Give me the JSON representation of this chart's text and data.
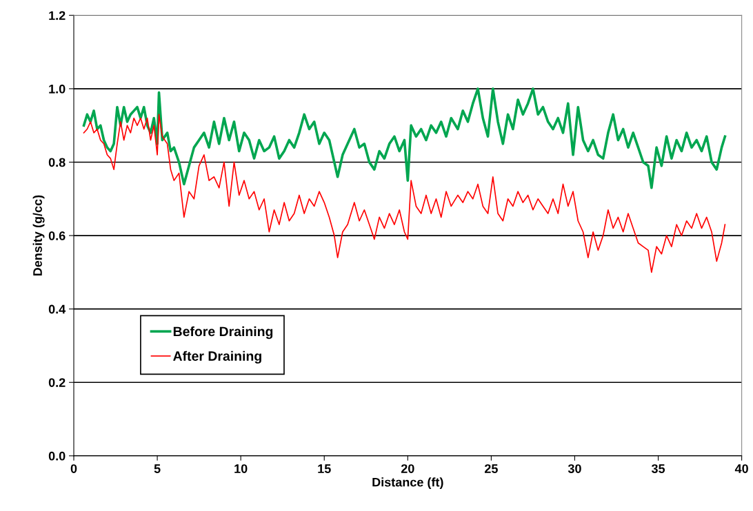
{
  "chart_data": {
    "type": "line",
    "xlabel": "Distance (ft)",
    "ylabel": "Density (g/cc)",
    "xlim": [
      0,
      40
    ],
    "xticks": [
      0,
      5,
      10,
      15,
      20,
      25,
      30,
      35,
      40
    ],
    "ylim": [
      0,
      1.2
    ],
    "yticks": [
      {
        "value": 0,
        "label": "0.0"
      },
      {
        "value": 0.2,
        "label": "0.2"
      },
      {
        "value": 0.4,
        "label": "0.4"
      },
      {
        "value": 0.6,
        "label": "0.6"
      },
      {
        "value": 0.8,
        "label": "0.8"
      },
      {
        "value": 1.0,
        "label": "1.0"
      },
      {
        "value": 1.2,
        "label": "1.2"
      }
    ],
    "grid": "y",
    "legend": "bottom left",
    "marker": "none",
    "line_style": "solid",
    "x": [
      0.6,
      0.8,
      1.0,
      1.2,
      1.4,
      1.6,
      1.8,
      2.0,
      2.2,
      2.4,
      2.6,
      2.8,
      3.0,
      3.2,
      3.4,
      3.6,
      3.8,
      4.0,
      4.2,
      4.4,
      4.6,
      4.8,
      5.0,
      5.1,
      5.3,
      5.6,
      5.8,
      6.0,
      6.3,
      6.6,
      6.9,
      7.2,
      7.5,
      7.8,
      8.1,
      8.4,
      8.7,
      9.0,
      9.3,
      9.6,
      9.9,
      10.2,
      10.5,
      10.8,
      11.1,
      11.4,
      11.7,
      12.0,
      12.3,
      12.6,
      12.9,
      13.2,
      13.5,
      13.8,
      14.1,
      14.4,
      14.7,
      15.0,
      15.3,
      15.6,
      15.8,
      16.1,
      16.4,
      16.8,
      17.1,
      17.4,
      17.7,
      18.0,
      18.3,
      18.6,
      18.9,
      19.2,
      19.5,
      19.8,
      20.0,
      20.2,
      20.5,
      20.8,
      21.1,
      21.4,
      21.7,
      22.0,
      22.3,
      22.6,
      23.0,
      23.3,
      23.6,
      23.9,
      24.2,
      24.5,
      24.8,
      25.1,
      25.4,
      25.7,
      26.0,
      26.3,
      26.6,
      26.9,
      27.2,
      27.5,
      27.8,
      28.1,
      28.4,
      28.7,
      29.0,
      29.3,
      29.6,
      29.9,
      30.2,
      30.5,
      30.8,
      31.1,
      31.4,
      31.7,
      32.0,
      32.3,
      32.6,
      32.9,
      33.2,
      33.5,
      33.8,
      34.1,
      34.4,
      34.6,
      34.9,
      35.2,
      35.5,
      35.8,
      36.1,
      36.4,
      36.7,
      37.0,
      37.3,
      37.6,
      37.9,
      38.2,
      38.5,
      38.8,
      39.0
    ],
    "series": [
      {
        "name": "Before Draining",
        "color": "#00a650",
        "values": [
          0.9,
          0.93,
          0.91,
          0.94,
          0.89,
          0.9,
          0.86,
          0.84,
          0.83,
          0.85,
          0.95,
          0.9,
          0.95,
          0.91,
          0.93,
          0.94,
          0.95,
          0.92,
          0.95,
          0.9,
          0.88,
          0.92,
          0.85,
          0.99,
          0.86,
          0.88,
          0.83,
          0.84,
          0.8,
          0.74,
          0.79,
          0.84,
          0.86,
          0.88,
          0.84,
          0.91,
          0.85,
          0.92,
          0.86,
          0.91,
          0.83,
          0.88,
          0.86,
          0.81,
          0.86,
          0.83,
          0.84,
          0.87,
          0.81,
          0.83,
          0.86,
          0.84,
          0.88,
          0.93,
          0.89,
          0.91,
          0.85,
          0.88,
          0.86,
          0.8,
          0.76,
          0.82,
          0.85,
          0.89,
          0.84,
          0.85,
          0.8,
          0.78,
          0.83,
          0.81,
          0.85,
          0.87,
          0.83,
          0.86,
          0.75,
          0.9,
          0.87,
          0.89,
          0.86,
          0.9,
          0.88,
          0.91,
          0.87,
          0.92,
          0.89,
          0.94,
          0.91,
          0.96,
          1.0,
          0.92,
          0.87,
          1.0,
          0.91,
          0.85,
          0.93,
          0.89,
          0.97,
          0.93,
          0.96,
          1.0,
          0.93,
          0.95,
          0.91,
          0.89,
          0.92,
          0.88,
          0.96,
          0.82,
          0.95,
          0.86,
          0.83,
          0.86,
          0.82,
          0.81,
          0.88,
          0.93,
          0.86,
          0.89,
          0.84,
          0.88,
          0.84,
          0.8,
          0.79,
          0.73,
          0.84,
          0.79,
          0.87,
          0.81,
          0.86,
          0.83,
          0.88,
          0.84,
          0.86,
          0.83,
          0.87,
          0.8,
          0.78,
          0.84,
          0.87
        ]
      },
      {
        "name": "After Draining",
        "color": "#ff0000",
        "values": [
          0.88,
          0.89,
          0.91,
          0.88,
          0.89,
          0.86,
          0.85,
          0.82,
          0.81,
          0.78,
          0.85,
          0.91,
          0.86,
          0.9,
          0.88,
          0.92,
          0.9,
          0.92,
          0.89,
          0.92,
          0.86,
          0.9,
          0.82,
          0.93,
          0.87,
          0.85,
          0.78,
          0.75,
          0.77,
          0.65,
          0.72,
          0.7,
          0.79,
          0.82,
          0.75,
          0.76,
          0.73,
          0.8,
          0.68,
          0.8,
          0.71,
          0.75,
          0.7,
          0.72,
          0.67,
          0.7,
          0.61,
          0.67,
          0.63,
          0.69,
          0.64,
          0.66,
          0.71,
          0.66,
          0.7,
          0.68,
          0.72,
          0.69,
          0.65,
          0.6,
          0.54,
          0.61,
          0.63,
          0.69,
          0.64,
          0.67,
          0.63,
          0.59,
          0.65,
          0.62,
          0.66,
          0.63,
          0.67,
          0.61,
          0.59,
          0.75,
          0.68,
          0.66,
          0.71,
          0.66,
          0.7,
          0.65,
          0.72,
          0.68,
          0.71,
          0.69,
          0.72,
          0.7,
          0.74,
          0.68,
          0.66,
          0.76,
          0.66,
          0.64,
          0.7,
          0.68,
          0.72,
          0.69,
          0.71,
          0.67,
          0.7,
          0.68,
          0.66,
          0.7,
          0.66,
          0.74,
          0.68,
          0.72,
          0.64,
          0.61,
          0.54,
          0.61,
          0.56,
          0.6,
          0.67,
          0.62,
          0.65,
          0.61,
          0.66,
          0.62,
          0.58,
          0.57,
          0.56,
          0.5,
          0.57,
          0.55,
          0.6,
          0.57,
          0.63,
          0.6,
          0.64,
          0.62,
          0.66,
          0.62,
          0.65,
          0.61,
          0.53,
          0.58,
          0.63
        ]
      }
    ]
  }
}
